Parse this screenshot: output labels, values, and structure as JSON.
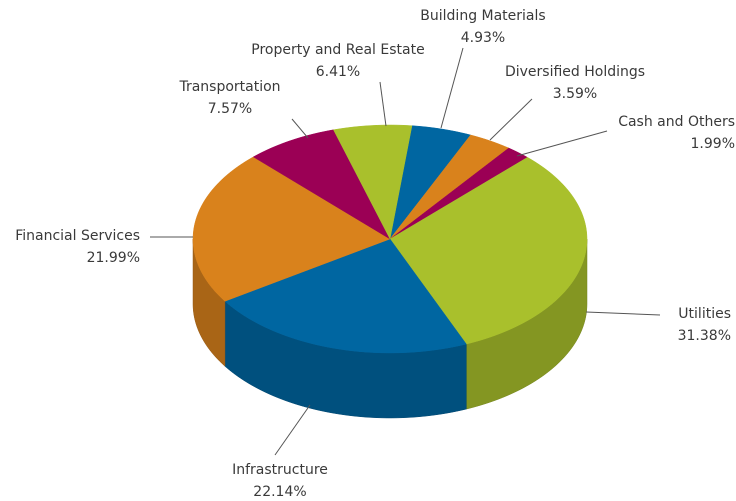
{
  "chart_data": {
    "type": "pie3d",
    "categories": [
      "Building Materials",
      "Diversified Holdings",
      "Cash and Others",
      "Utilities",
      "Infrastructure",
      "Financial Services",
      "Transportation",
      "Property and Real Estate"
    ],
    "values": [
      4.93,
      3.59,
      1.99,
      31.38,
      22.14,
      21.99,
      7.57,
      6.41
    ],
    "value_labels": [
      "4.93%",
      "3.59%",
      "1.99%",
      "31.38%",
      "22.14%",
      "21.99%",
      "7.57%",
      "6.41%"
    ],
    "colors": [
      "#0066a1",
      "#d9821c",
      "#9b0055",
      "#a9c02c",
      "#0066a1",
      "#d9821c",
      "#9b0055",
      "#a9c02c"
    ]
  }
}
